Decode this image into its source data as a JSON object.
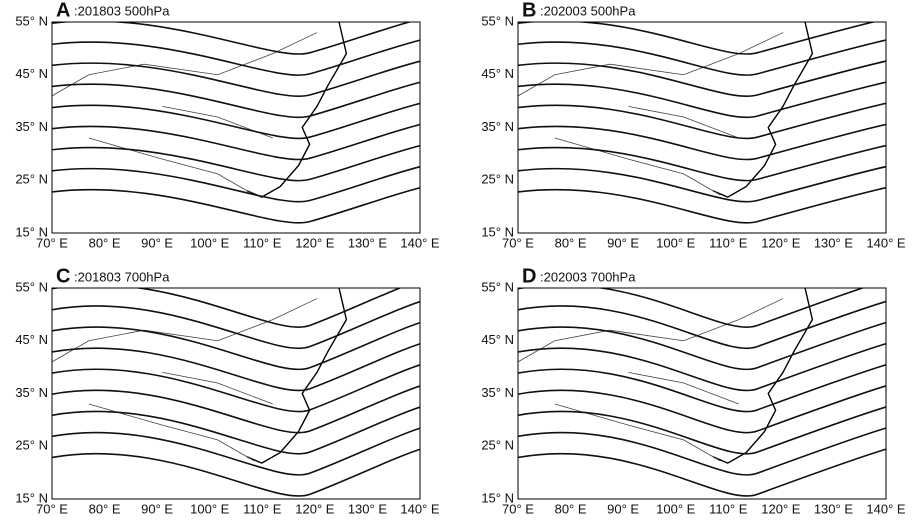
{
  "panels": [
    {
      "label": "A",
      "title": ":201803 500hPa",
      "x_labels": [
        "70° E",
        "80° E",
        "90° E",
        "100° E",
        "110° E",
        "120° E",
        "130° E",
        "140° E"
      ],
      "y_labels": [
        "55° N",
        "45° N",
        "35° N",
        "25° N",
        "15° N"
      ]
    },
    {
      "label": "B",
      "title": ":202003 500hPa",
      "x_labels": [
        "70° E",
        "80° E",
        "90° E",
        "100° E",
        "110° E",
        "120° E",
        "130° E",
        "140° E"
      ],
      "y_labels": [
        "55° N",
        "45° N",
        "35° N",
        "25° N",
        "15° N"
      ]
    },
    {
      "label": "C",
      "title": ":201803 700hPa",
      "x_labels": [
        "70° E",
        "80° E",
        "90° E",
        "100° E",
        "110° E",
        "120° E",
        "130° E",
        "140° E"
      ],
      "y_labels": [
        "55° N",
        "45° N",
        "35° N",
        "25° N",
        "15° N"
      ]
    },
    {
      "label": "D",
      "title": ":202003 700hPa",
      "x_labels": [
        "70° E",
        "80° E",
        "90° E",
        "100° E",
        "110° E",
        "120° E",
        "130° E",
        "140° E"
      ],
      "y_labels": [
        "55° N",
        "45° N",
        "35° N",
        "25° N",
        "15° N"
      ]
    }
  ]
}
